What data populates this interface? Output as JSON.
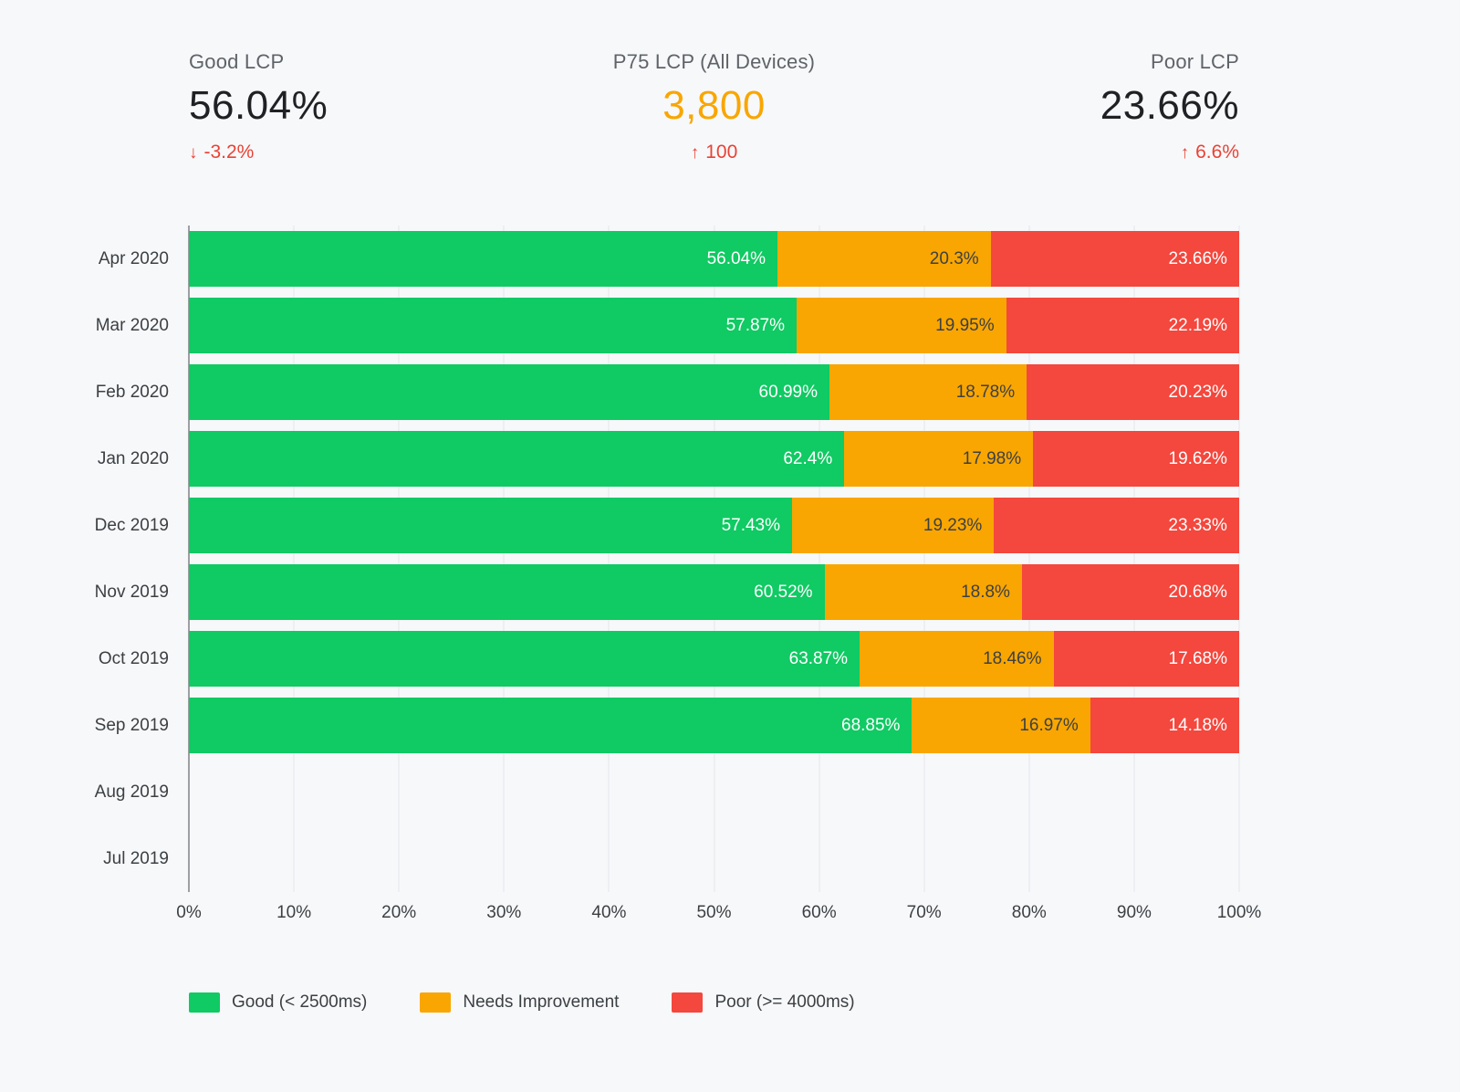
{
  "page": {
    "background": "#f7f8fa"
  },
  "kpis": [
    {
      "label": "Good LCP",
      "value": "56.04%",
      "value_color": "#202124",
      "delta": "-3.2%",
      "delta_direction": "down",
      "delta_arrow": "↓",
      "delta_color": "#e94235"
    },
    {
      "label": "P75 LCP (All Devices)",
      "value": "3,800",
      "value_color": "#f9a602",
      "delta": "100",
      "delta_direction": "up",
      "delta_arrow": "↑",
      "delta_color": "#e94235"
    },
    {
      "label": "Poor LCP",
      "value": "23.66%",
      "value_color": "#202124",
      "delta": "6.6%",
      "delta_direction": "up",
      "delta_arrow": "↑",
      "delta_color": "#e94235"
    }
  ],
  "chart_data": {
    "type": "bar",
    "orientation": "horizontal",
    "stacked": true,
    "title": "",
    "xlabel": "",
    "ylabel": "",
    "xlim": [
      0,
      100
    ],
    "grid": true,
    "legend_position": "bottom",
    "categories": [
      "Apr 2020",
      "Mar 2020",
      "Feb 2020",
      "Jan 2020",
      "Dec 2019",
      "Nov 2019",
      "Oct 2019",
      "Sep 2019",
      "Aug 2019",
      "Jul 2019"
    ],
    "series": [
      {
        "name": "Good (< 2500ms)",
        "key": "good",
        "color": "#10ca63",
        "label_color": "#ffffff",
        "values": [
          56.04,
          57.87,
          60.99,
          62.4,
          57.43,
          60.52,
          63.87,
          68.85,
          null,
          null
        ]
      },
      {
        "name": "Needs Improvement",
        "key": "needs-improvement",
        "color": "#f9a602",
        "label_color": "#3c4043",
        "values": [
          20.3,
          19.95,
          18.78,
          17.98,
          19.23,
          18.8,
          18.46,
          16.97,
          null,
          null
        ]
      },
      {
        "name": "Poor (>= 4000ms)",
        "key": "poor",
        "color": "#f4473d",
        "label_color": "#ffffff",
        "values": [
          23.66,
          22.19,
          20.23,
          19.62,
          23.33,
          20.68,
          17.68,
          14.18,
          null,
          null
        ]
      }
    ],
    "value_suffix": "%",
    "x_ticks": [
      "0%",
      "10%",
      "20%",
      "30%",
      "40%",
      "50%",
      "60%",
      "70%",
      "80%",
      "90%",
      "100%"
    ]
  }
}
